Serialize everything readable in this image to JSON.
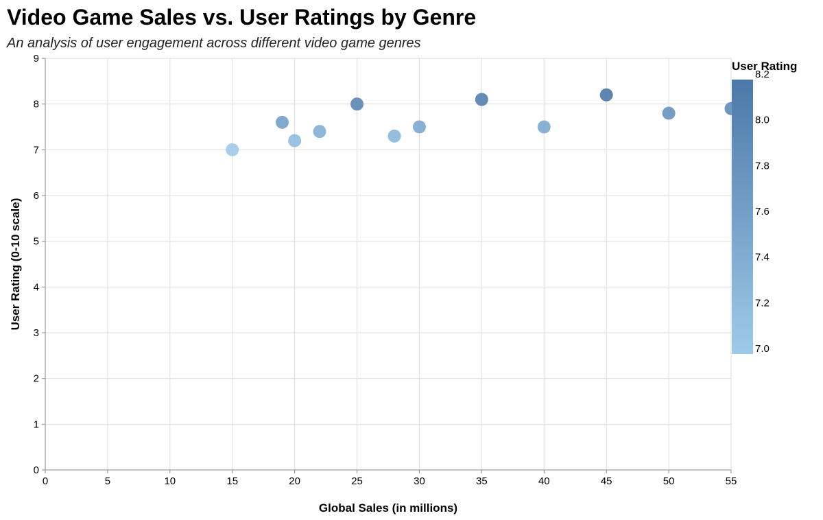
{
  "chart_data": {
    "type": "scatter",
    "title": "Video Game Sales vs. User Ratings by Genre",
    "subtitle": "An analysis of user engagement across different video game genres",
    "xlabel": "Global Sales (in millions)",
    "ylabel": "User Rating (0-10 scale)",
    "xlim": [
      0,
      55
    ],
    "ylim": [
      0,
      9
    ],
    "x_ticks": [
      0,
      5,
      10,
      15,
      20,
      25,
      30,
      35,
      40,
      45,
      50,
      55
    ],
    "y_ticks": [
      0,
      1,
      2,
      3,
      4,
      5,
      6,
      7,
      8,
      9
    ],
    "grid": true,
    "points": [
      {
        "x": 15,
        "y": 7.0
      },
      {
        "x": 19,
        "y": 7.6
      },
      {
        "x": 20,
        "y": 7.2
      },
      {
        "x": 22,
        "y": 7.4
      },
      {
        "x": 25,
        "y": 8.0
      },
      {
        "x": 28,
        "y": 7.3
      },
      {
        "x": 30,
        "y": 7.5
      },
      {
        "x": 35,
        "y": 8.1
      },
      {
        "x": 40,
        "y": 7.5
      },
      {
        "x": 45,
        "y": 8.2
      },
      {
        "x": 50,
        "y": 7.8
      },
      {
        "x": 55,
        "y": 7.9
      }
    ],
    "color_legend": {
      "title": "User Rating",
      "min": 7.0,
      "max": 8.2,
      "ticks": [
        "7.0",
        "7.2",
        "7.4",
        "7.6",
        "7.8",
        "8.0",
        "8.2"
      ],
      "color_low": "#9ecae9",
      "color_high": "#4c78a8",
      "placement": "right"
    }
  }
}
